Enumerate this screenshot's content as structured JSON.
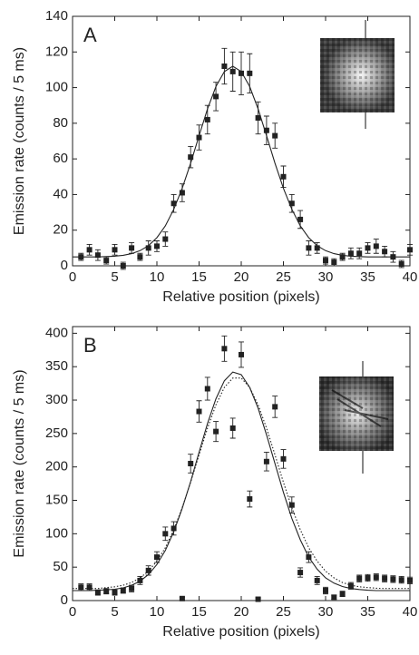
{
  "chart_data": [
    {
      "type": "scatter",
      "panel_label": "A",
      "y_label": "Emission rate (counts / 5 ms)",
      "x_label": "Relative position (pixels)",
      "xlim": [
        0,
        40
      ],
      "xticks": [
        0,
        5,
        10,
        15,
        20,
        25,
        30,
        35,
        40
      ],
      "ylim": [
        0,
        140
      ],
      "yticks": [
        0,
        20,
        40,
        60,
        80,
        100,
        120,
        140
      ],
      "points": {
        "color": "#222222",
        "x": [
          1,
          2,
          3,
          4,
          5,
          6,
          7,
          8,
          9,
          10,
          11,
          12,
          13,
          14,
          15,
          16,
          17,
          18,
          19,
          20,
          21,
          22,
          23,
          24,
          25,
          26,
          27,
          28,
          29,
          30,
          31,
          32,
          33,
          34,
          35,
          36,
          37,
          38,
          39,
          40
        ],
        "values": [
          5,
          9,
          6,
          3,
          9,
          0,
          10,
          5,
          10,
          11,
          15,
          35,
          41,
          61,
          72,
          82,
          95,
          112,
          109,
          108,
          108,
          83,
          76,
          73,
          50,
          35,
          26,
          10,
          10,
          3,
          2,
          5,
          7,
          7,
          10,
          11,
          8,
          5,
          1,
          9
        ],
        "errors": [
          2,
          3,
          3,
          2,
          3,
          2,
          3,
          2,
          4,
          3,
          4,
          5,
          5,
          6,
          7,
          8,
          8,
          10,
          11,
          12,
          11,
          9,
          8,
          7,
          6,
          5,
          5,
          4,
          3,
          2,
          2,
          2,
          3,
          3,
          3,
          4,
          3,
          3,
          2,
          3
        ]
      },
      "fits": [
        {
          "color": "#222222",
          "style": "solid",
          "x": [
            0,
            1,
            2,
            3,
            4,
            5,
            6,
            7,
            8,
            9,
            10,
            11,
            12,
            13,
            14,
            15,
            16,
            17,
            18,
            19,
            20,
            21,
            22,
            23,
            24,
            25,
            26,
            27,
            28,
            29,
            30,
            31,
            32,
            33,
            34,
            35,
            36,
            37,
            38,
            39,
            40
          ],
          "values": [
            5,
            5,
            5,
            5,
            5.2,
            5.4,
            5.9,
            6.8,
            8.5,
            11.3,
            15.8,
            22.4,
            31.7,
            43.5,
            57.6,
            73,
            88,
            100.6,
            109,
            112,
            109,
            100.6,
            88,
            73,
            57.6,
            43.5,
            31.7,
            22.4,
            15.8,
            11.3,
            8.5,
            6.8,
            5.9,
            5.4,
            5.2,
            5,
            5,
            5,
            5,
            5,
            5
          ]
        }
      ]
    },
    {
      "type": "scatter",
      "panel_label": "B",
      "y_label": "Emission rate (counts / 5 ms)",
      "x_label": "Relative position (pixels)",
      "xlim": [
        0,
        40
      ],
      "xticks": [
        0,
        5,
        10,
        15,
        20,
        25,
        30,
        35,
        40
      ],
      "ylim": [
        0,
        410
      ],
      "yticks": [
        0,
        50,
        100,
        150,
        200,
        250,
        300,
        350,
        400
      ],
      "points": {
        "color": "#222222",
        "x": [
          1,
          2,
          3,
          4,
          5,
          6,
          7,
          8,
          9,
          10,
          11,
          12,
          13,
          14,
          15,
          16,
          17,
          18,
          19,
          20,
          21,
          22,
          23,
          24,
          25,
          26,
          27,
          28,
          29,
          30,
          31,
          32,
          33,
          34,
          35,
          36,
          37,
          38,
          39,
          40
        ],
        "values": [
          20,
          20,
          12,
          14,
          12,
          15,
          18,
          30,
          45,
          65,
          100,
          108,
          3,
          205,
          283,
          317,
          253,
          377,
          258,
          368,
          152,
          2,
          208,
          290,
          212,
          143,
          42,
          65,
          30,
          15,
          5,
          10,
          22,
          33,
          34,
          35,
          33,
          32,
          31,
          30
        ],
        "errors": [
          5,
          5,
          4,
          4,
          4,
          4,
          5,
          6,
          7,
          8,
          10,
          10,
          2,
          14,
          16,
          17,
          15,
          19,
          15,
          19,
          12,
          2,
          14,
          16,
          14,
          12,
          7,
          8,
          6,
          5,
          3,
          4,
          5,
          5,
          5,
          5,
          5,
          5,
          5,
          5
        ]
      },
      "fits": [
        {
          "color": "#222222",
          "style": "solid",
          "x": [
            0,
            1,
            2,
            3,
            4,
            5,
            6,
            7,
            8,
            9,
            10,
            11,
            12,
            13,
            14,
            15,
            16,
            17,
            18,
            19,
            20,
            21,
            22,
            23,
            24,
            25,
            26,
            27,
            28,
            29,
            30,
            31,
            32,
            33,
            34,
            35,
            36,
            37,
            38,
            39,
            40
          ],
          "values": [
            15,
            15,
            15,
            15.5,
            16,
            17,
            19,
            23,
            29,
            39,
            54,
            75,
            103,
            138,
            178,
            222,
            265,
            302,
            329,
            342,
            338,
            319,
            288,
            248,
            205,
            162,
            123,
            91,
            65,
            47,
            34,
            26,
            21,
            18,
            16.6,
            15.5,
            15,
            15,
            15,
            15,
            15
          ]
        },
        {
          "color": "#222222",
          "style": "dotted",
          "x": [
            0,
            1,
            2,
            3,
            4,
            5,
            6,
            7,
            8,
            9,
            10,
            11,
            12,
            13,
            14,
            15,
            16,
            17,
            18,
            19,
            20,
            21,
            22,
            23,
            24,
            25,
            26,
            27,
            28,
            29,
            30,
            31,
            32,
            33,
            34,
            35,
            36,
            37,
            38,
            39,
            40
          ],
          "values": [
            18,
            18,
            18,
            18,
            19.4,
            20.7,
            23,
            27,
            34,
            44,
            59,
            79,
            106,
            139,
            177,
            218,
            258,
            293,
            319,
            333,
            333,
            319,
            293,
            258,
            218,
            177,
            139,
            106,
            79,
            59,
            44,
            34,
            27,
            23,
            20.7,
            19.4,
            18.5,
            18,
            18,
            18,
            18
          ]
        }
      ]
    }
  ]
}
